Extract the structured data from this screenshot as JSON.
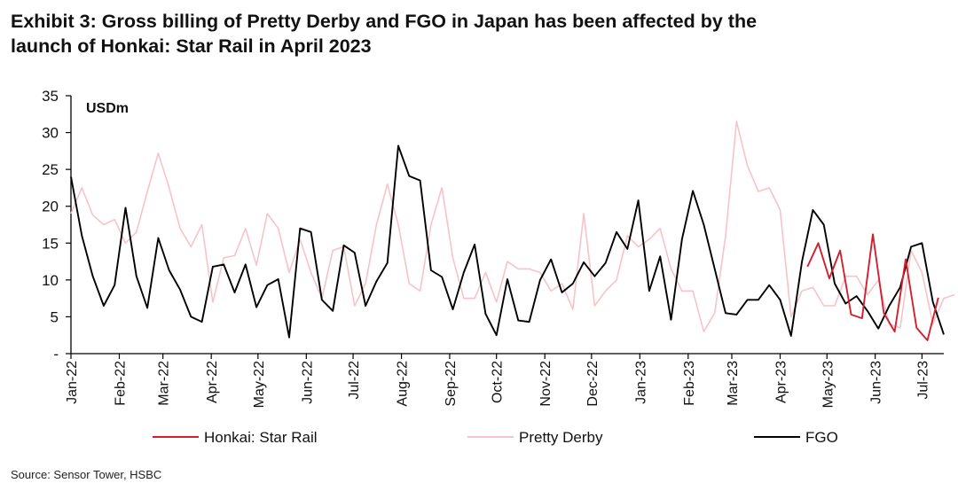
{
  "chart_data": {
    "type": "line",
    "title_line1": "Exhibit 3: Gross billing of Pretty Derby and FGO in Japan has been affected by the",
    "title_line2": "launch of Honkai: Star Rail in April 2023",
    "unit_label": "USDm",
    "source": "Source: Sensor Tower, HSBC",
    "ylim": [
      0,
      35
    ],
    "y_ticks": [
      {
        "value": 0,
        "label": "-"
      },
      {
        "value": 5,
        "label": "5"
      },
      {
        "value": 10,
        "label": "10"
      },
      {
        "value": 15,
        "label": "15"
      },
      {
        "value": 20,
        "label": "20"
      },
      {
        "value": 25,
        "label": "25"
      },
      {
        "value": 30,
        "label": "30"
      },
      {
        "value": 35,
        "label": "35"
      }
    ],
    "xlim": [
      0,
      80
    ],
    "x_ticks": [
      {
        "x": 0,
        "label": "Jan-22"
      },
      {
        "x": 4.43,
        "label": "Feb-22"
      },
      {
        "x": 8.43,
        "label": "Mar-22"
      },
      {
        "x": 12.86,
        "label": "Apr-22"
      },
      {
        "x": 17.14,
        "label": "May-22"
      },
      {
        "x": 21.57,
        "label": "Jun-22"
      },
      {
        "x": 25.86,
        "label": "Jul-22"
      },
      {
        "x": 30.29,
        "label": "Aug-22"
      },
      {
        "x": 34.71,
        "label": "Sep-22"
      },
      {
        "x": 39.0,
        "label": "Oct-22"
      },
      {
        "x": 43.43,
        "label": "Nov-22"
      },
      {
        "x": 47.71,
        "label": "Dec-22"
      },
      {
        "x": 52.14,
        "label": "Jan-23"
      },
      {
        "x": 56.57,
        "label": "Feb-23"
      },
      {
        "x": 60.57,
        "label": "Mar-23"
      },
      {
        "x": 65.0,
        "label": "Apr-23"
      },
      {
        "x": 69.29,
        "label": "May-23"
      },
      {
        "x": 73.71,
        "label": "Jun-23"
      },
      {
        "x": 78.0,
        "label": "Jul-23"
      }
    ],
    "series": [
      {
        "name": "Pretty Derby",
        "color": "#f7c3c8",
        "x0": 0,
        "values": [
          19.0,
          22.5,
          18.8,
          17.5,
          18.2,
          15.0,
          16.5,
          22.0,
          27.2,
          22.5,
          17.0,
          14.5,
          17.5,
          7.0,
          13.0,
          13.3,
          17.0,
          12.0,
          19.0,
          17.0,
          11.0,
          15.5,
          11.0,
          7.5,
          14.0,
          14.5,
          6.5,
          9.5,
          17.5,
          23.0,
          17.5,
          9.5,
          8.5,
          17.5,
          22.5,
          13.0,
          7.5,
          7.5,
          11.0,
          7.0,
          12.5,
          11.5,
          11.5,
          11.0,
          8.5,
          9.5,
          6.0,
          19.0,
          6.5,
          8.5,
          10.0,
          16.0,
          14.5,
          15.5,
          17.0,
          11.5,
          8.5,
          8.5,
          3.0,
          5.5,
          16.0,
          31.5,
          25.5,
          22.0,
          22.5,
          19.5,
          5.0,
          8.5,
          9.0,
          6.5,
          6.5,
          10.5,
          10.5,
          8.0,
          10.0,
          4.0,
          3.5,
          14.0,
          11.0,
          4.0,
          7.5,
          8.0
        ]
      },
      {
        "name": "FGO",
        "color": "#000000",
        "x0": 0,
        "values": [
          24.0,
          16.0,
          10.5,
          6.5,
          9.3,
          19.8,
          10.5,
          6.2,
          15.7,
          11.3,
          8.7,
          5.0,
          4.3,
          11.8,
          12.1,
          8.3,
          12.1,
          6.3,
          9.3,
          10.1,
          2.2,
          17.0,
          16.5,
          7.3,
          5.8,
          14.7,
          13.7,
          6.5,
          9.8,
          12.3,
          28.2,
          24.1,
          23.5,
          11.3,
          10.4,
          6.0,
          11.0,
          14.8,
          5.4,
          2.5,
          10.1,
          4.5,
          4.3,
          10.0,
          12.8,
          8.3,
          9.5,
          12.4,
          10.5,
          12.3,
          16.5,
          14.2,
          20.8,
          8.5,
          13.2,
          4.6,
          15.5,
          22.1,
          17.5,
          11.5,
          5.5,
          5.3,
          7.3,
          7.3,
          9.3,
          7.3,
          2.4,
          12.5,
          19.5,
          17.5,
          9.5,
          6.8,
          7.8,
          5.8,
          3.4,
          6.5,
          9.0,
          14.5,
          15.0,
          7.0,
          2.6
        ]
      },
      {
        "name": "Honkai: Star Rail",
        "color": "#d2202f",
        "x0": 67.5,
        "values": [
          11.8,
          15.0,
          10.2,
          14.0,
          5.3,
          4.8,
          16.2,
          5.5,
          3.0,
          12.8,
          3.5,
          1.8,
          7.6
        ]
      }
    ],
    "legend_order": [
      "Honkai: Star Rail",
      "Pretty Derby",
      "FGO"
    ]
  }
}
